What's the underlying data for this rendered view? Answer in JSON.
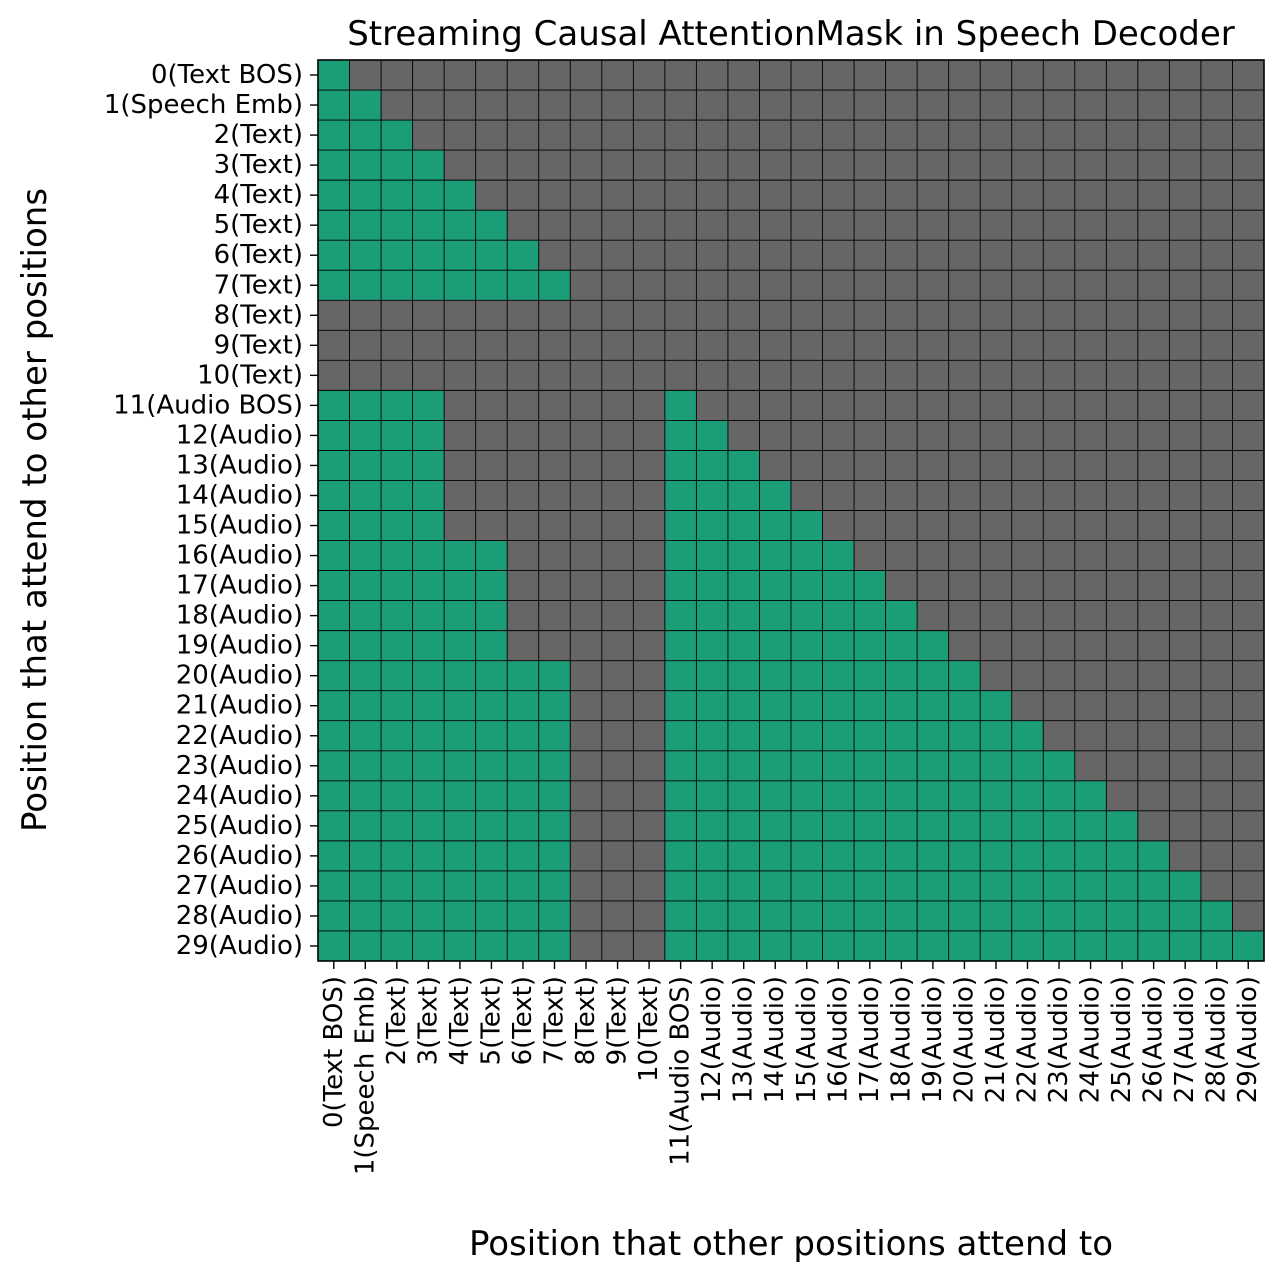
{
  "chart_data": {
    "type": "heatmap",
    "title": "Streaming Causal AttentionMask in Speech Decoder",
    "xlabel": "Position that other positions attend to",
    "ylabel": "Position that attend to other positions",
    "labels": [
      "0(Text BOS)",
      "1(Speech Emb)",
      "2(Text)",
      "3(Text)",
      "4(Text)",
      "5(Text)",
      "6(Text)",
      "7(Text)",
      "8(Text)",
      "9(Text)",
      "10(Text)",
      "11(Audio BOS)",
      "12(Audio)",
      "13(Audio)",
      "14(Audio)",
      "15(Audio)",
      "16(Audio)",
      "17(Audio)",
      "18(Audio)",
      "19(Audio)",
      "20(Audio)",
      "21(Audio)",
      "22(Audio)",
      "23(Audio)",
      "24(Audio)",
      "25(Audio)",
      "26(Audio)",
      "27(Audio)",
      "28(Audio)",
      "29(Audio)"
    ],
    "mask": [
      "100000000000000000000000000000",
      "110000000000000000000000000000",
      "111000000000000000000000000000",
      "111100000000000000000000000000",
      "111110000000000000000000000000",
      "111111000000000000000000000000",
      "111111100000000000000000000000",
      "111111110000000000000000000000",
      "000000000000000000000000000000",
      "000000000000000000000000000000",
      "000000000000000000000000000000",
      "111100000001000000000000000000",
      "111100000001100000000000000000",
      "111100000001110000000000000000",
      "111100000001111000000000000000",
      "111100000001111100000000000000",
      "111111000001111110000000000000",
      "111111000001111111000000000000",
      "111111000001111111100000000000",
      "111111000001111111110000000000",
      "111111110001111111111000000000",
      "111111110001111111111100000000",
      "111111110001111111111110000000",
      "111111110001111111111111000000",
      "111111110001111111111111100000",
      "111111110001111111111111110000",
      "111111110001111111111111111000",
      "111111110001111111111111111100",
      "111111110001111111111111111110",
      "111111110001111111111111111111"
    ],
    "colors": {
      "attend": "#1b9e77",
      "masked": "#666666",
      "grid": "#000000"
    },
    "grid": true,
    "legend": "none"
  }
}
